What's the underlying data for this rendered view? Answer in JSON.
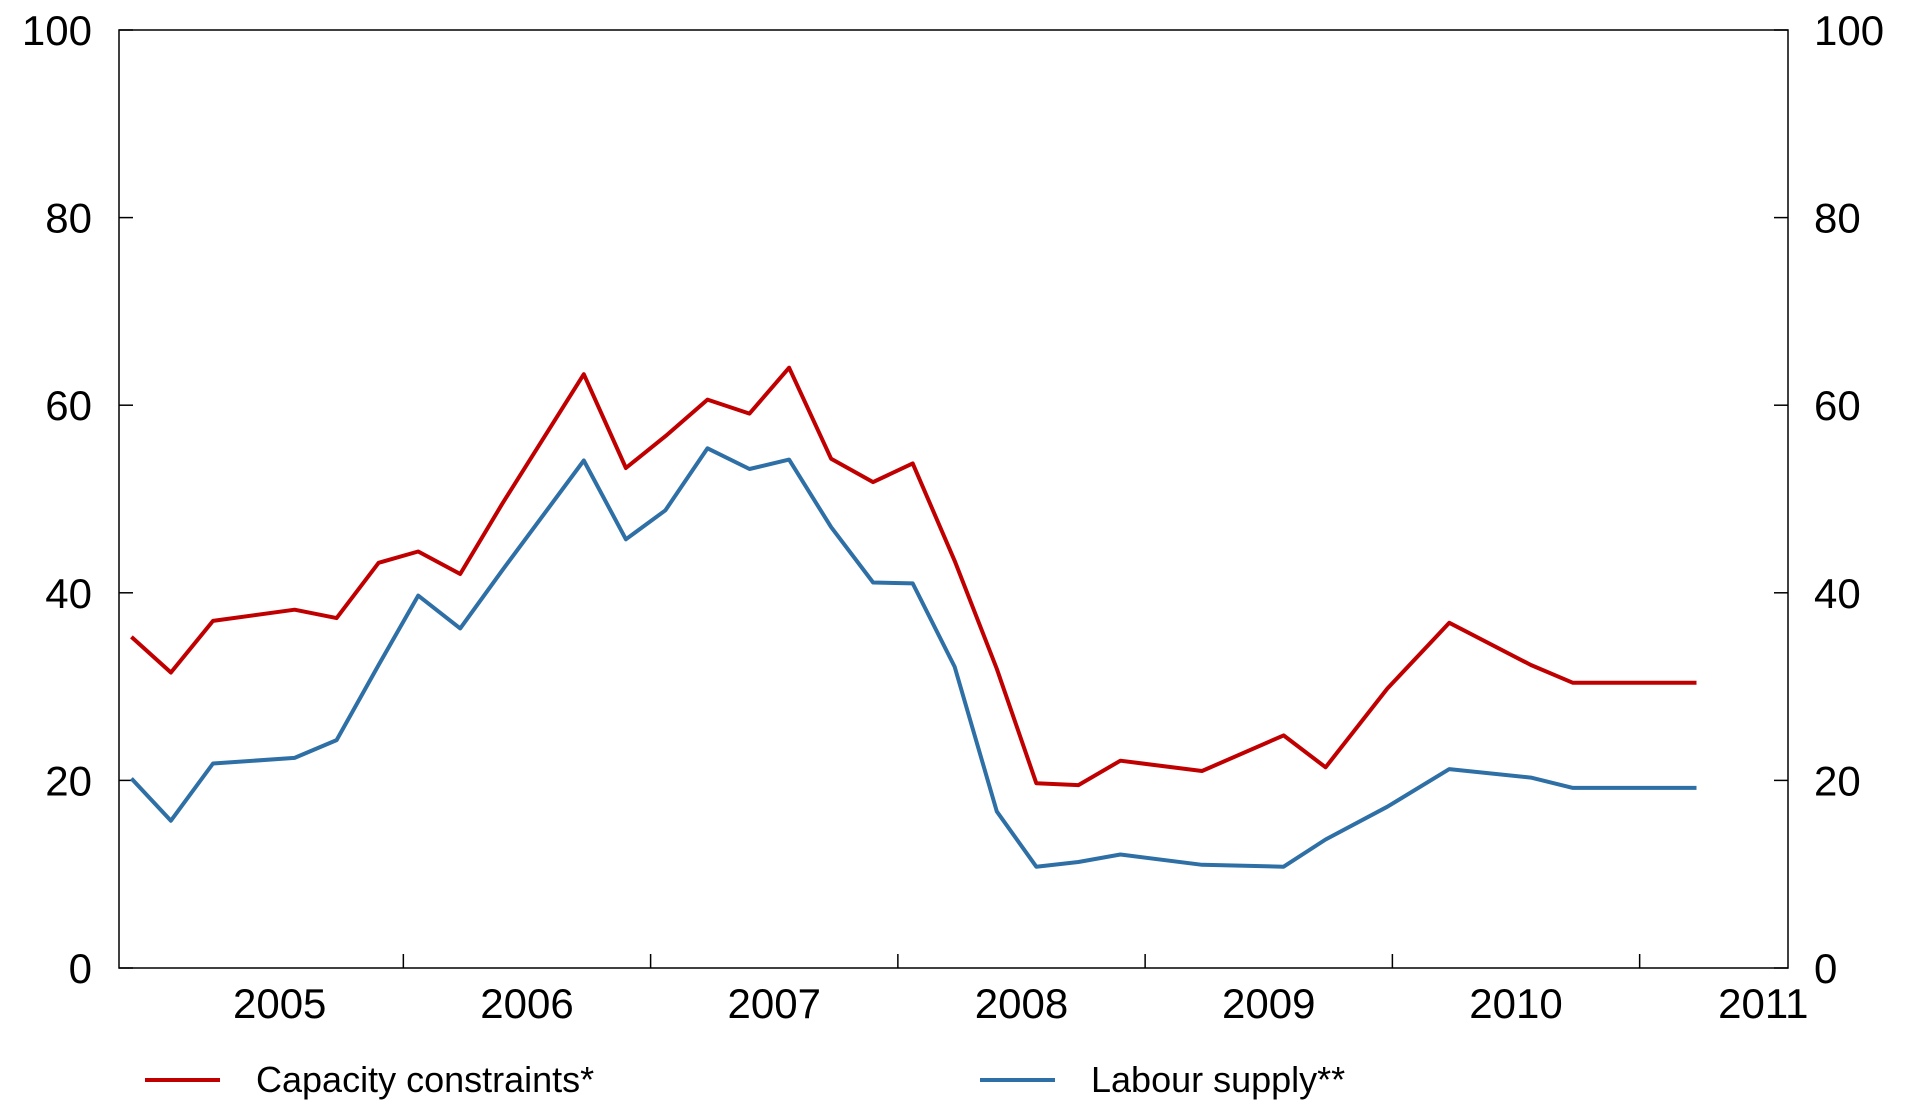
{
  "chart_data": {
    "type": "line",
    "title": "",
    "xlabel": "",
    "ylabel": "",
    "ylim": [
      0,
      100
    ],
    "yticks": [
      0,
      20,
      40,
      60,
      80,
      100
    ],
    "ytick_labels": [
      "0",
      "20",
      "40",
      "60",
      "80",
      "100"
    ],
    "xlim": [
      2004.85,
      2011.6
    ],
    "x_tick_labels": [
      "2005",
      "2006",
      "2007",
      "2008",
      "2009",
      "2010",
      "2011"
    ],
    "legend": "bottom",
    "grid": false,
    "x": [
      2004.9,
      2005.06,
      2005.23,
      2005.56,
      2005.73,
      2005.9,
      2006.06,
      2006.23,
      2006.4,
      2006.73,
      2006.9,
      2007.06,
      2007.23,
      2007.4,
      2007.56,
      2007.73,
      2007.9,
      2008.06,
      2008.23,
      2008.4,
      2008.56,
      2008.73,
      2008.9,
      2009.23,
      2009.56,
      2009.73,
      2009.98,
      2010.23,
      2010.56,
      2010.73,
      2010.9,
      2011.06,
      2011.23
    ],
    "series": [
      {
        "name": "Capacity constraints*",
        "color": "#c00000",
        "values": [
          35.3,
          31.5,
          37,
          38.2,
          37.3,
          43.2,
          44.4,
          42,
          49.5,
          63.3,
          53.3,
          56.7,
          60.6,
          59.1,
          64,
          54.3,
          51.8,
          53.8,
          43.4,
          31.9,
          19.7,
          19.5,
          22.1,
          21,
          24.8,
          21.4,
          29.8,
          36.8,
          32.3,
          30.4,
          30.4,
          30.4,
          30.4
        ]
      },
      {
        "name": "Labour supply**",
        "color": "#2e6fa6",
        "values": [
          20.2,
          15.7,
          21.8,
          22.4,
          24.3,
          32.3,
          39.7,
          36.2,
          42.4,
          54.1,
          45.7,
          48.8,
          55.4,
          53.2,
          54.2,
          47,
          41.1,
          41,
          32.1,
          16.7,
          10.8,
          11.3,
          12.1,
          11,
          10.8,
          13.7,
          17.2,
          21.2,
          20.3,
          19.2,
          19.2,
          19.2,
          19.2
        ]
      }
    ]
  }
}
